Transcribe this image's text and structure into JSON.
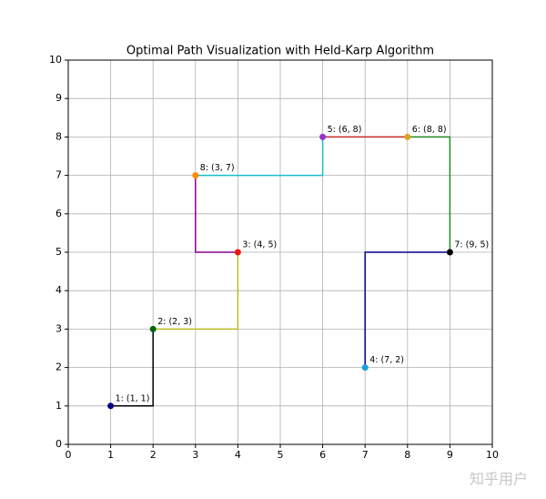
{
  "chart_data": {
    "type": "manhattan-path",
    "title": "Optimal Path Visualization with Held-Karp Algorithm",
    "x": [
      1,
      2,
      4,
      3,
      6,
      8,
      9,
      7
    ],
    "y": [
      1,
      3,
      5,
      7,
      8,
      8,
      5,
      2
    ],
    "point_labels": [
      "1: (1, 1)",
      "2: (2, 3)",
      "3: (4, 5)",
      "8: (3, 7)",
      "5: (6, 8)",
      "6: (8, 8)",
      "7: (9, 5)",
      "4: (7, 2)"
    ],
    "point_colors": [
      "#00008b",
      "#006400",
      "#e8190f",
      "#ff8c00",
      "#9932cc",
      "#daa520",
      "#000000",
      "#1aa0d8"
    ],
    "path_colors": [
      "#000000",
      "#bcbd22",
      "#8b008b",
      "#17becf",
      "#c62828",
      "#228b22",
      "#00008b"
    ],
    "xlim": [
      0,
      10
    ],
    "ylim": [
      0,
      10
    ],
    "xticks": [
      0,
      1,
      2,
      3,
      4,
      5,
      6,
      7,
      8,
      9,
      10
    ],
    "yticks": [
      0,
      1,
      2,
      3,
      4,
      5,
      6,
      7,
      8,
      9,
      10
    ],
    "grid": true
  },
  "watermark": "知乎用户"
}
